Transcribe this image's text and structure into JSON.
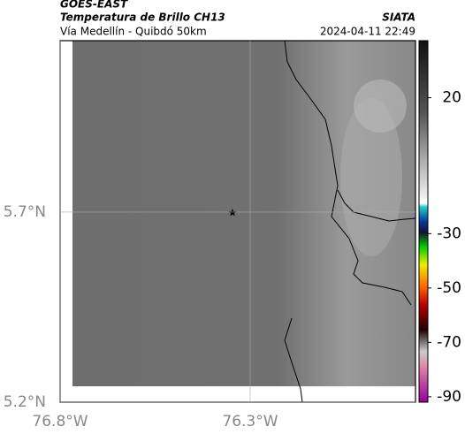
{
  "header": {
    "source": "GOES-EAST",
    "title": "Temperatura de Brillo CH13",
    "subtitle": "Vía Medellín - Quibdó 50km",
    "org": "SIATA",
    "datetime": "2024-04-11 22:49"
  },
  "map": {
    "xlim": [
      -76.8,
      -75.865
    ],
    "ylim": [
      5.2,
      6.151
    ],
    "xticks": [
      {
        "value": -76.8,
        "label": "76.8°W"
      },
      {
        "value": -76.3,
        "label": "76.3°W"
      }
    ],
    "yticks": [
      {
        "value": 5.2,
        "label": "5.2°N"
      },
      {
        "value": 5.7,
        "label": "5.7°N"
      }
    ],
    "grid": true
  },
  "colorbar": {
    "lim": [
      -92,
      41
    ],
    "ticks": [
      20,
      -30,
      -50,
      -70,
      -90
    ]
  }
}
